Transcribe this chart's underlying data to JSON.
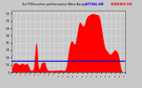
{
  "title": "Sol PV/Inverter performance West Array",
  "legend_actual": "ACTUAL kW",
  "legend_average": "AVERAGE kW",
  "bg_color": "#c8c8c8",
  "plot_bg_color": "#c8c8c8",
  "bar_color": "#ff0000",
  "avg_line_color": "#0000cc",
  "grid_color": "#ffffff",
  "ylim_max": 1.05,
  "avg_val": 0.195,
  "num_points": 500
}
